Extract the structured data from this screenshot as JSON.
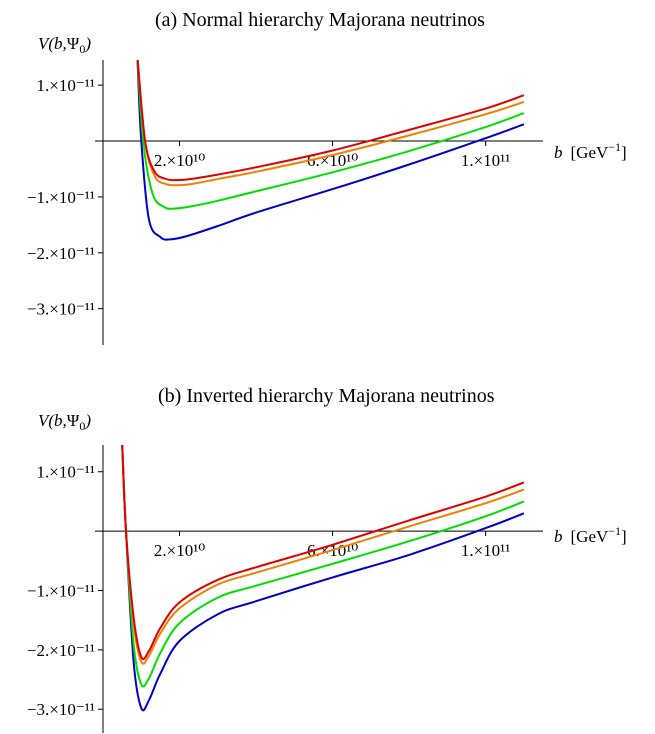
{
  "chart_data": [
    {
      "type": "line",
      "title": "(a) Normal hierarchy Majorana neutrinos",
      "ylabel": "V(b,Ψ0)",
      "xlabel": "b [GeV⁻¹]",
      "xlim": [
        0,
        115000000000.0
      ],
      "ylim": [
        -3.65e-11,
        1.45e-11
      ],
      "xticks": [
        {
          "value": 20000000000.0,
          "label": "2.×10¹⁰"
        },
        {
          "value": 60000000000.0,
          "label": "6.×10¹⁰"
        },
        {
          "value": 100000000000.0,
          "label": "1.×10¹¹"
        }
      ],
      "yticks": [
        {
          "value": 1e-11,
          "label": "1.×10⁻¹¹"
        },
        {
          "value": -1e-11,
          "label": "−1.×10⁻¹¹"
        },
        {
          "value": -2e-11,
          "label": "−2.×10⁻¹¹"
        },
        {
          "value": -3e-11,
          "label": "−3.×10⁻¹¹"
        }
      ],
      "series": [
        {
          "color": "#0000cc",
          "x": [
            9000000000.0,
            10000000000.0,
            12000000000.0,
            15000000000.0,
            17500000000.0,
            22000000000.0,
            30000000000.0,
            40000000000.0,
            60000000000.0,
            80000000000.0,
            100000000000.0,
            110000000000.0
          ],
          "y": [
            1.5e-11,
            0.0,
            -1.4e-11,
            -1.72e-11,
            -1.76e-11,
            -1.7e-11,
            -1.52e-11,
            -1.28e-11,
            -8.6e-12,
            -4.2e-12,
            5e-13,
            3e-12
          ]
        },
        {
          "color": "#00e000",
          "x": [
            9000000000.0,
            10500000000.0,
            13000000000.0,
            16000000000.0,
            18500000000.0,
            23000000000.0,
            30000000000.0,
            40000000000.0,
            60000000000.0,
            80000000000.0,
            100000000000.0,
            110000000000.0
          ],
          "y": [
            1.5e-11,
            0.0,
            -9.5e-12,
            -1.18e-11,
            -1.21e-11,
            -1.17e-11,
            -1.07e-11,
            -9e-12,
            -5.6e-12,
            -1.8e-12,
            2.5e-12,
            5e-12
          ]
        },
        {
          "color": "#f08000",
          "x": [
            9000000000.0,
            11000000000.0,
            13500000000.0,
            16500000000.0,
            19000000000.0,
            23000000000.0,
            30000000000.0,
            40000000000.0,
            60000000000.0,
            80000000000.0,
            100000000000.0,
            110000000000.0
          ],
          "y": [
            1.5e-11,
            0.0,
            -6.3e-12,
            -7.7e-12,
            -7.9e-12,
            -7.7e-12,
            -6.8e-12,
            -5.5e-12,
            -2.5e-12,
            1e-12,
            4.8e-12,
            7e-12
          ]
        },
        {
          "color": "#e00000",
          "x": [
            9000000000.0,
            11000000000.0,
            13500000000.0,
            16500000000.0,
            19000000000.0,
            23000000000.0,
            30000000000.0,
            40000000000.0,
            60000000000.0,
            80000000000.0,
            100000000000.0,
            110000000000.0
          ],
          "y": [
            1.5e-11,
            0.0,
            -5.5e-12,
            -6.8e-12,
            -7e-12,
            -6.8e-12,
            -6e-12,
            -4.7e-12,
            -1.7e-12,
            2e-12,
            5.8e-12,
            8.2e-12
          ]
        }
      ]
    },
    {
      "type": "line",
      "title": "(b) Inverted hierarchy Majorana neutrinos",
      "ylabel": "V(b,Ψ0)",
      "xlabel": "b [GeV⁻¹]",
      "xlim": [
        0,
        115000000000.0
      ],
      "ylim": [
        -3.4e-11,
        1.45e-11
      ],
      "xticks": [
        {
          "value": 20000000000.0,
          "label": "2.×10¹⁰"
        },
        {
          "value": 60000000000.0,
          "label": "6.×10¹⁰"
        },
        {
          "value": 100000000000.0,
          "label": "1.×10¹¹"
        }
      ],
      "yticks": [
        {
          "value": 1e-11,
          "label": "1.×10⁻¹¹"
        },
        {
          "value": -1e-11,
          "label": "−1.×10⁻¹¹"
        },
        {
          "value": -2e-11,
          "label": "−2.×10⁻¹¹"
        },
        {
          "value": -3e-11,
          "label": "−3.×10⁻¹¹"
        }
      ],
      "series": [
        {
          "color": "#0000cc",
          "x": [
            5000000000.0,
            6000000000.0,
            8000000000.0,
            10000000000.0,
            12000000000.0,
            15000000000.0,
            20000000000.0,
            30000000000.0,
            40000000000.0,
            60000000000.0,
            80000000000.0,
            100000000000.0,
            110000000000.0
          ],
          "y": [
            1.5e-11,
            0.0,
            -2.2e-11,
            -2.98e-11,
            -2.85e-11,
            -2.4e-11,
            -1.85e-11,
            -1.4e-11,
            -1.18e-11,
            -7.8e-12,
            -4e-12,
            5e-13,
            3e-12
          ]
        },
        {
          "color": "#00e000",
          "x": [
            5000000000.0,
            6000000000.0,
            8000000000.0,
            10000000000.0,
            12000000000.0,
            15000000000.0,
            20000000000.0,
            30000000000.0,
            40000000000.0,
            60000000000.0,
            80000000000.0,
            100000000000.0,
            110000000000.0
          ],
          "y": [
            1.5e-11,
            0.0,
            -1.9e-11,
            -2.58e-11,
            -2.48e-11,
            -2.05e-11,
            -1.55e-11,
            -1.12e-11,
            -9.2e-12,
            -5.5e-12,
            -1.7e-12,
            2.5e-12,
            5e-12
          ]
        },
        {
          "color": "#f08000",
          "x": [
            5000000000.0,
            6000000000.0,
            8000000000.0,
            10000000000.0,
            12000000000.0,
            15000000000.0,
            20000000000.0,
            30000000000.0,
            40000000000.0,
            60000000000.0,
            80000000000.0,
            100000000000.0,
            110000000000.0
          ],
          "y": [
            1.5e-11,
            0.0,
            -1.55e-11,
            -2.2e-11,
            -2.1e-11,
            -1.72e-11,
            -1.3e-11,
            -9e-12,
            -7e-12,
            -3.2e-12,
            8e-13,
            4.7e-12,
            7e-12
          ]
        },
        {
          "color": "#e00000",
          "x": [
            5000000000.0,
            6000000000.0,
            8000000000.0,
            10000000000.0,
            12000000000.0,
            15000000000.0,
            20000000000.0,
            30000000000.0,
            40000000000.0,
            60000000000.0,
            80000000000.0,
            100000000000.0,
            110000000000.0
          ],
          "y": [
            1.5e-11,
            0.0,
            -1.45e-11,
            -2.12e-11,
            -2.02e-11,
            -1.63e-11,
            -1.2e-11,
            -8.2e-12,
            -6.1e-12,
            -2.3e-12,
            1.8e-12,
            5.8e-12,
            8.2e-12
          ]
        }
      ]
    }
  ]
}
